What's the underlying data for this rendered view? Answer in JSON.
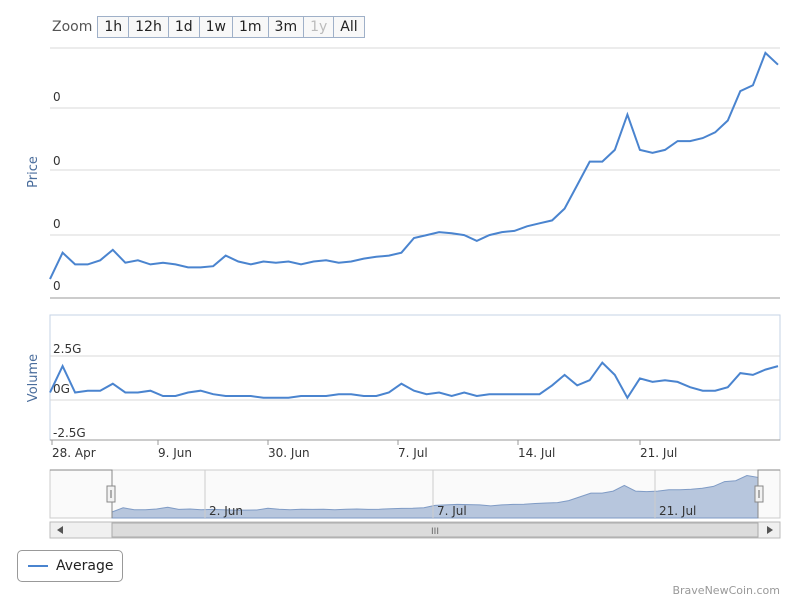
{
  "zoom": {
    "label": "Zoom",
    "buttons": [
      "1h",
      "12h",
      "1d",
      "1w",
      "1m",
      "3m",
      "1y",
      "All"
    ],
    "disabled": [
      "1y"
    ]
  },
  "legend": {
    "label": "Average"
  },
  "credit": "BraveNewCoin.com",
  "navigator": {
    "ticks": [
      "2. Jun",
      "7. Jul",
      "21. Jul"
    ],
    "scrollbar_grip": "III"
  },
  "colors": {
    "line": "#4a84cf",
    "navigator_fill": "#b7c6dd",
    "grid": "#d8d8d8"
  },
  "chart_data": {
    "type": "line",
    "x_ticks": [
      "28. Apr",
      "9. Jun",
      "30. Jun",
      "7. Jul",
      "14. Jul",
      "21. Jul"
    ],
    "panels": [
      {
        "name": "price",
        "ylabel": "Price",
        "y_ticks": [
          "0",
          "0",
          "0",
          "0"
        ],
        "series": [
          {
            "name": "Average",
            "values": [
              0.1,
              0.55,
              0.35,
              0.35,
              0.42,
              0.6,
              0.38,
              0.42,
              0.35,
              0.38,
              0.35,
              0.3,
              0.3,
              0.32,
              0.5,
              0.4,
              0.35,
              0.4,
              0.38,
              0.4,
              0.35,
              0.4,
              0.42,
              0.38,
              0.4,
              0.45,
              0.48,
              0.5,
              0.55,
              0.8,
              0.85,
              0.9,
              0.88,
              0.85,
              0.75,
              0.85,
              0.9,
              0.92,
              1.0,
              1.05,
              1.1,
              1.3,
              1.7,
              2.1,
              2.1,
              2.3,
              2.9,
              2.3,
              2.25,
              2.3,
              2.45,
              2.45,
              2.5,
              2.6,
              2.8,
              3.3,
              3.4,
              3.95,
              3.75
            ]
          }
        ]
      },
      {
        "name": "volume",
        "ylabel": "Volume",
        "y_ticks": [
          "2.5G",
          "0G",
          "-2.5G"
        ],
        "ylim": [
          -2.5,
          2.5
        ],
        "series": [
          {
            "name": "Average",
            "values": [
              0.2,
              1.7,
              0.2,
              0.3,
              0.3,
              0.7,
              0.2,
              0.2,
              0.3,
              0.0,
              0.0,
              0.2,
              0.3,
              0.1,
              0.0,
              0.0,
              0.0,
              -0.1,
              -0.1,
              -0.1,
              0.0,
              0.0,
              0.0,
              0.1,
              0.1,
              0.0,
              0.0,
              0.2,
              0.7,
              0.3,
              0.1,
              0.2,
              0.0,
              0.2,
              0.0,
              0.1,
              0.1,
              0.1,
              0.1,
              0.1,
              0.6,
              1.2,
              0.6,
              0.9,
              1.9,
              1.2,
              -0.1,
              1.0,
              0.8,
              0.9,
              0.8,
              0.5,
              0.3,
              0.3,
              0.5,
              1.3,
              1.2,
              1.5,
              1.7
            ]
          }
        ]
      }
    ],
    "navigator": {
      "values_from": "price"
    },
    "grid": true,
    "legend_position": "bottom-left"
  }
}
